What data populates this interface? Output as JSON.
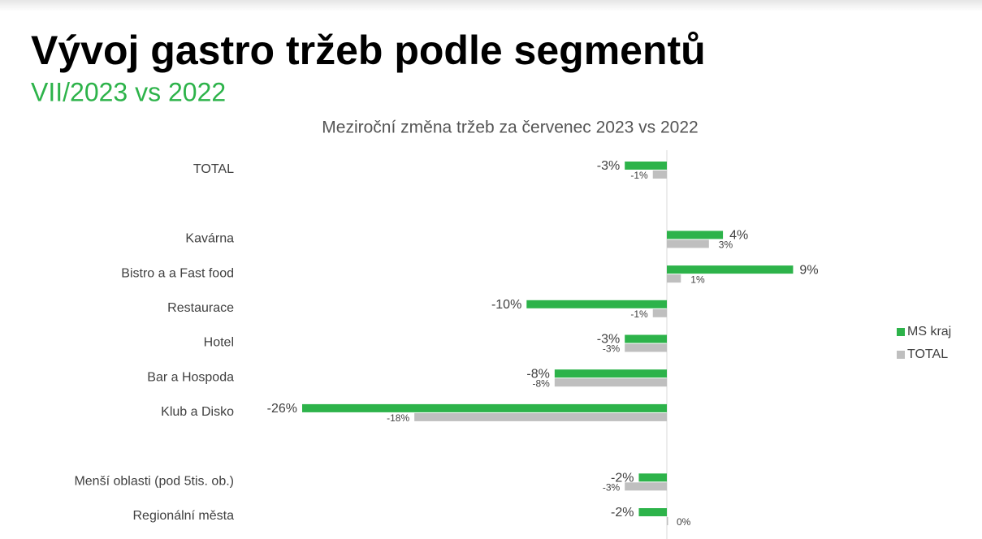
{
  "header": {
    "title": "Vývoj gastro tržeb podle segmentů",
    "subtitle": "VII/2023 vs 2022"
  },
  "chart_data": {
    "type": "hbar",
    "title": "Meziroční změna tržeb za červenec 2023 vs 2022",
    "categories": [
      "TOTAL",
      null,
      "Kavárna",
      "Bistro a a Fast food",
      "Restaurace",
      "Hotel",
      "Bar a Hospoda",
      "Klub a Disko",
      null,
      "Menší oblasti (pod 5tis. ob.)",
      "Regionální města"
    ],
    "series": [
      {
        "name": "MS kraj",
        "color": "#2db34a",
        "values": [
          -3,
          null,
          4,
          9,
          -10,
          -3,
          -8,
          -26,
          null,
          -2,
          -2
        ],
        "value_labels": [
          "-3%",
          null,
          "4%",
          "9%",
          "-10%",
          "-3%",
          "-8%",
          "-26%",
          null,
          "-2%",
          "-2%"
        ]
      },
      {
        "name": "TOTAL",
        "color": "#bfbfbf",
        "values": [
          -1,
          null,
          3,
          1,
          -1,
          -3,
          -8,
          -18,
          null,
          -3,
          0
        ],
        "value_labels": [
          "-1%",
          null,
          "3%",
          "1%",
          "-1%",
          "-3%",
          "-8%",
          "-18%",
          null,
          "-3%",
          "0%"
        ]
      }
    ],
    "legend": "right"
  }
}
